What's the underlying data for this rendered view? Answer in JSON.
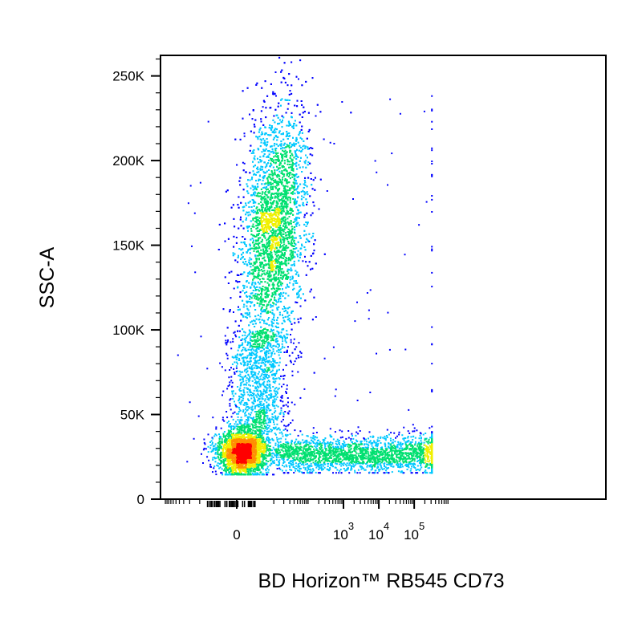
{
  "chart_data": {
    "type": "scatter",
    "style": "flow-cytometry pseudocolor density dot plot",
    "xlabel": "BD Horizon™ RB545 CD73",
    "ylabel": "SSC-A",
    "x_scale": "biexponential",
    "x_ticks": [
      {
        "value": 0,
        "label": "0",
        "exp": ""
      },
      {
        "value": 1000,
        "label": "10",
        "exp": "3"
      },
      {
        "value": 10000,
        "label": "10",
        "exp": "4"
      },
      {
        "value": 100000,
        "label": "10",
        "exp": "5"
      }
    ],
    "y_scale": "linear",
    "ylim": [
      0,
      262144
    ],
    "y_ticks": [
      {
        "value": 0,
        "label": "0"
      },
      {
        "value": 50000,
        "label": "50K"
      },
      {
        "value": 100000,
        "label": "100K"
      },
      {
        "value": 150000,
        "label": "150K"
      },
      {
        "value": 200000,
        "label": "200K"
      },
      {
        "value": 250000,
        "label": "250K"
      }
    ],
    "populations": [
      {
        "description": "CD73-negative, low SSC",
        "x_center": 0,
        "y_center": 28000,
        "density": "highest"
      },
      {
        "description": "CD73-dim, high SSC (vertical arm)",
        "x_center": 300,
        "y_center": 160000,
        "density": "high"
      },
      {
        "description": "CD73-positive, low SSC (horizontal arm)",
        "x_center": 2000,
        "y_center": 27000,
        "density": "medium"
      }
    ],
    "colormap": [
      "#0000ff",
      "#00c8ff",
      "#00e070",
      "#f0f000",
      "#ff9000",
      "#ff0000"
    ],
    "grid": false,
    "legend": "none"
  }
}
